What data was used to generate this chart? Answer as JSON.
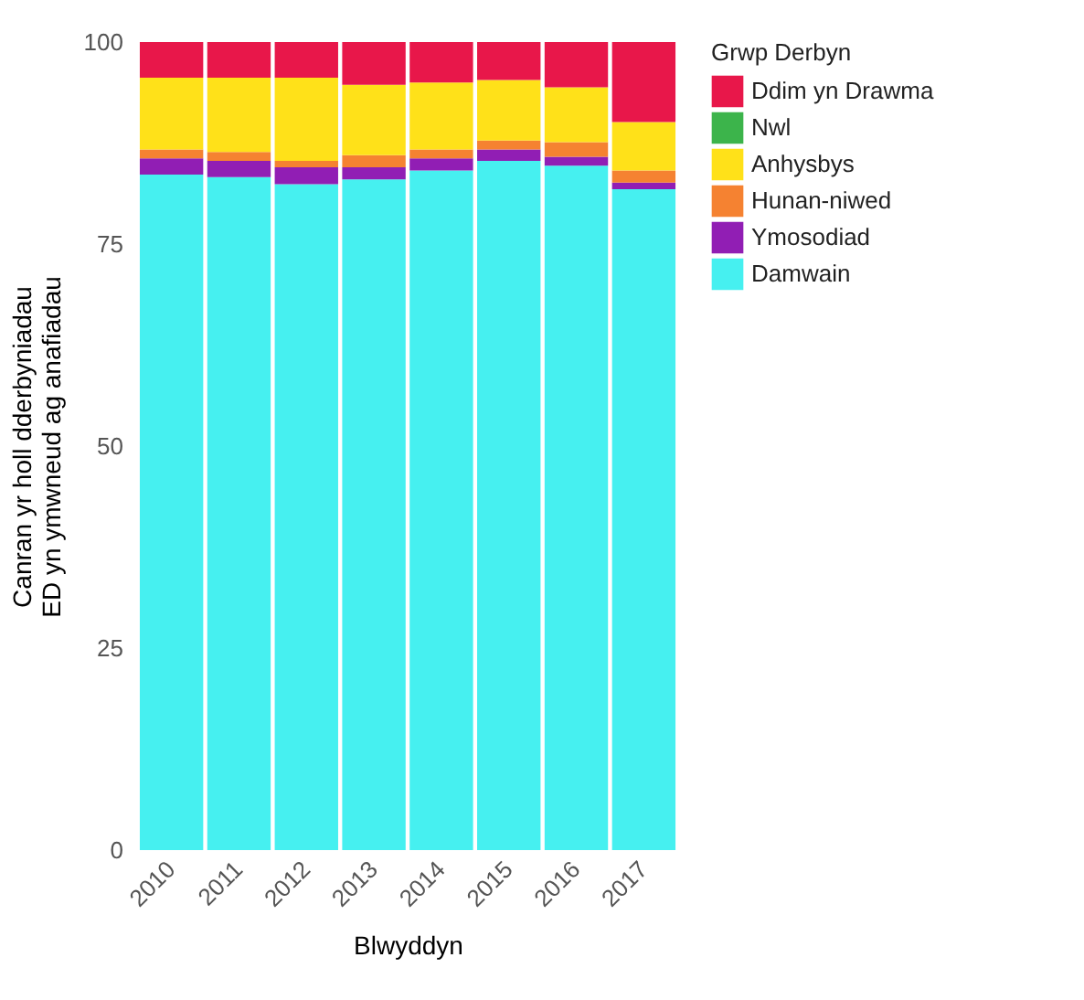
{
  "chart_data": {
    "type": "bar",
    "stacked": true,
    "xlabel": "Blwyddyn",
    "ylabel": "Canran yr holl dderbyniadau\nED yn ymwneud ag anafiadau",
    "legend_title": "Grwp Derbyn",
    "legend": "right",
    "grid": false,
    "categories": [
      "2010",
      "2011",
      "2012",
      "2013",
      "2014",
      "2015",
      "2016",
      "2017"
    ],
    "ylim": [
      0,
      100
    ],
    "yticks": [
      0,
      25,
      50,
      75,
      100
    ],
    "series": [
      {
        "name": "Damwain",
        "color": "#46f0f0",
        "values": [
          83.6,
          83.3,
          82.4,
          83.0,
          84.1,
          85.3,
          84.7,
          81.8
        ]
      },
      {
        "name": "Ymosodiad",
        "color": "#911eb4",
        "values": [
          2.0,
          2.0,
          2.1,
          1.5,
          1.5,
          1.4,
          1.1,
          0.8
        ]
      },
      {
        "name": "Hunan-niwed",
        "color": "#f58231",
        "values": [
          1.1,
          1.1,
          0.8,
          1.5,
          1.1,
          1.1,
          1.8,
          1.5
        ]
      },
      {
        "name": "Anhysbys",
        "color": "#ffe119",
        "values": [
          8.9,
          9.2,
          10.3,
          8.7,
          8.3,
          7.5,
          6.8,
          6.0
        ]
      },
      {
        "name": "Nwl",
        "color": "#3cb44b",
        "values": [
          0,
          0,
          0,
          0,
          0,
          0,
          0,
          0
        ]
      },
      {
        "name": "Ddim yn Drawma",
        "color": "#e8174a",
        "values": [
          4.4,
          4.4,
          4.4,
          5.3,
          5.0,
          4.7,
          5.6,
          9.9
        ]
      }
    ]
  }
}
